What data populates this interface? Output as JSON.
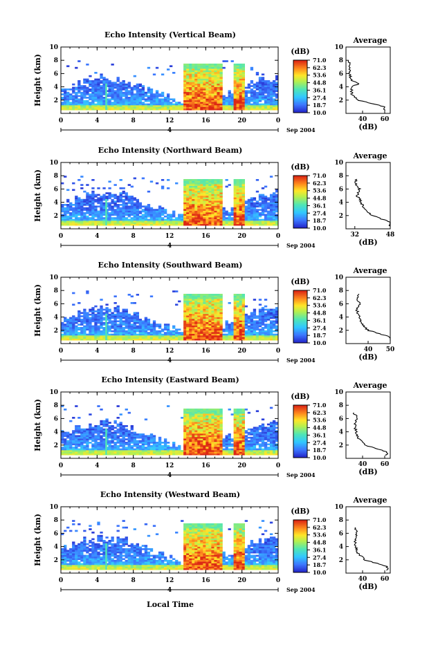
{
  "common": {
    "ylabel": "Height (km)",
    "yticks": [
      "2",
      "4",
      "6",
      "8",
      "10"
    ],
    "xticks": [
      "0",
      "4",
      "8",
      "12",
      "16",
      "20",
      "0"
    ],
    "date_day": "4",
    "date_label": "Sep 2004",
    "colorbar_unit": "(dB)",
    "colorbar_ticks": [
      "71.0",
      "62.3",
      "53.6",
      "44.8",
      "36.1",
      "27.4",
      "18.7",
      "10.0"
    ],
    "avg_title": "Average",
    "avg_xlabel": "(dB)",
    "xlabel": "Local Time"
  },
  "panels": [
    {
      "title": "Echo Intensity (Vertical Beam)",
      "avg_xticks": [
        "40",
        "60"
      ]
    },
    {
      "title": "Echo Intensity (Northward Beam)",
      "avg_xticks": [
        "32",
        "48"
      ]
    },
    {
      "title": "Echo Intensity (Southward Beam)",
      "avg_xticks": [
        "40",
        "50"
      ]
    },
    {
      "title": "Echo Intensity (Eastward Beam)",
      "avg_xticks": [
        "40",
        "60"
      ]
    },
    {
      "title": "Echo Intensity (Westward Beam)",
      "avg_xticks": [
        "40",
        "60"
      ]
    }
  ],
  "chart_data": [
    {
      "type": "heatmap",
      "title": "Echo Intensity (Vertical Beam)",
      "ylabel": "Height (km)",
      "xlim": [
        0,
        24
      ],
      "ylim": [
        0,
        10
      ],
      "colorbar": {
        "unit": "(dB)",
        "min": 10.0,
        "max": 71.0
      },
      "avg_profile": {
        "xlim": [
          25,
          65
        ],
        "height_km": [
          1,
          2,
          3,
          4,
          4.5,
          5,
          6,
          7,
          8
        ],
        "value_db": [
          60,
          36,
          30,
          30,
          37,
          30,
          28,
          29,
          27
        ]
      }
    },
    {
      "type": "heatmap",
      "title": "Echo Intensity (Northward Beam)",
      "ylabel": "Height (km)",
      "xlim": [
        0,
        24
      ],
      "ylim": [
        0,
        10
      ],
      "colorbar": {
        "unit": "(dB)",
        "min": 10.0,
        "max": 71.0
      },
      "avg_profile": {
        "xlim": [
          28,
          48
        ],
        "height_km": [
          1,
          2,
          3,
          4,
          5,
          6,
          7,
          7.5
        ],
        "value_db": [
          48,
          40,
          36,
          35,
          33,
          34,
          32,
          33
        ]
      }
    },
    {
      "type": "heatmap",
      "title": "Echo Intensity (Southward Beam)",
      "ylabel": "Height (km)",
      "xlim": [
        0,
        24
      ],
      "ylim": [
        0,
        10
      ],
      "colorbar": {
        "unit": "(dB)",
        "min": 10.0,
        "max": 71.0
      },
      "avg_profile": {
        "xlim": [
          30,
          50
        ],
        "height_km": [
          1,
          2,
          3,
          4,
          5,
          6,
          7,
          7.5
        ],
        "value_db": [
          50,
          40,
          37,
          36,
          35,
          36,
          35,
          36
        ]
      }
    },
    {
      "type": "heatmap",
      "title": "Echo Intensity (Eastward Beam)",
      "ylabel": "Height (km)",
      "xlim": [
        0,
        24
      ],
      "ylim": [
        0,
        10
      ],
      "colorbar": {
        "unit": "(dB)",
        "min": 10.0,
        "max": 71.0
      },
      "avg_profile": {
        "xlim": [
          25,
          65
        ],
        "height_km": [
          1,
          2,
          3,
          4,
          5,
          6,
          7
        ],
        "value_db": [
          62,
          42,
          36,
          34,
          33,
          35,
          32
        ]
      }
    },
    {
      "type": "heatmap",
      "title": "Echo Intensity (Westward Beam)",
      "ylabel": "Height (km)",
      "xlim": [
        0,
        24
      ],
      "ylim": [
        0,
        10
      ],
      "colorbar": {
        "unit": "(dB)",
        "min": 10.0,
        "max": 71.0
      },
      "avg_profile": {
        "xlim": [
          25,
          65
        ],
        "height_km": [
          1,
          2,
          3,
          4,
          5,
          6,
          7
        ],
        "value_db": [
          62,
          42,
          36,
          34,
          33,
          35,
          33
        ]
      }
    }
  ]
}
